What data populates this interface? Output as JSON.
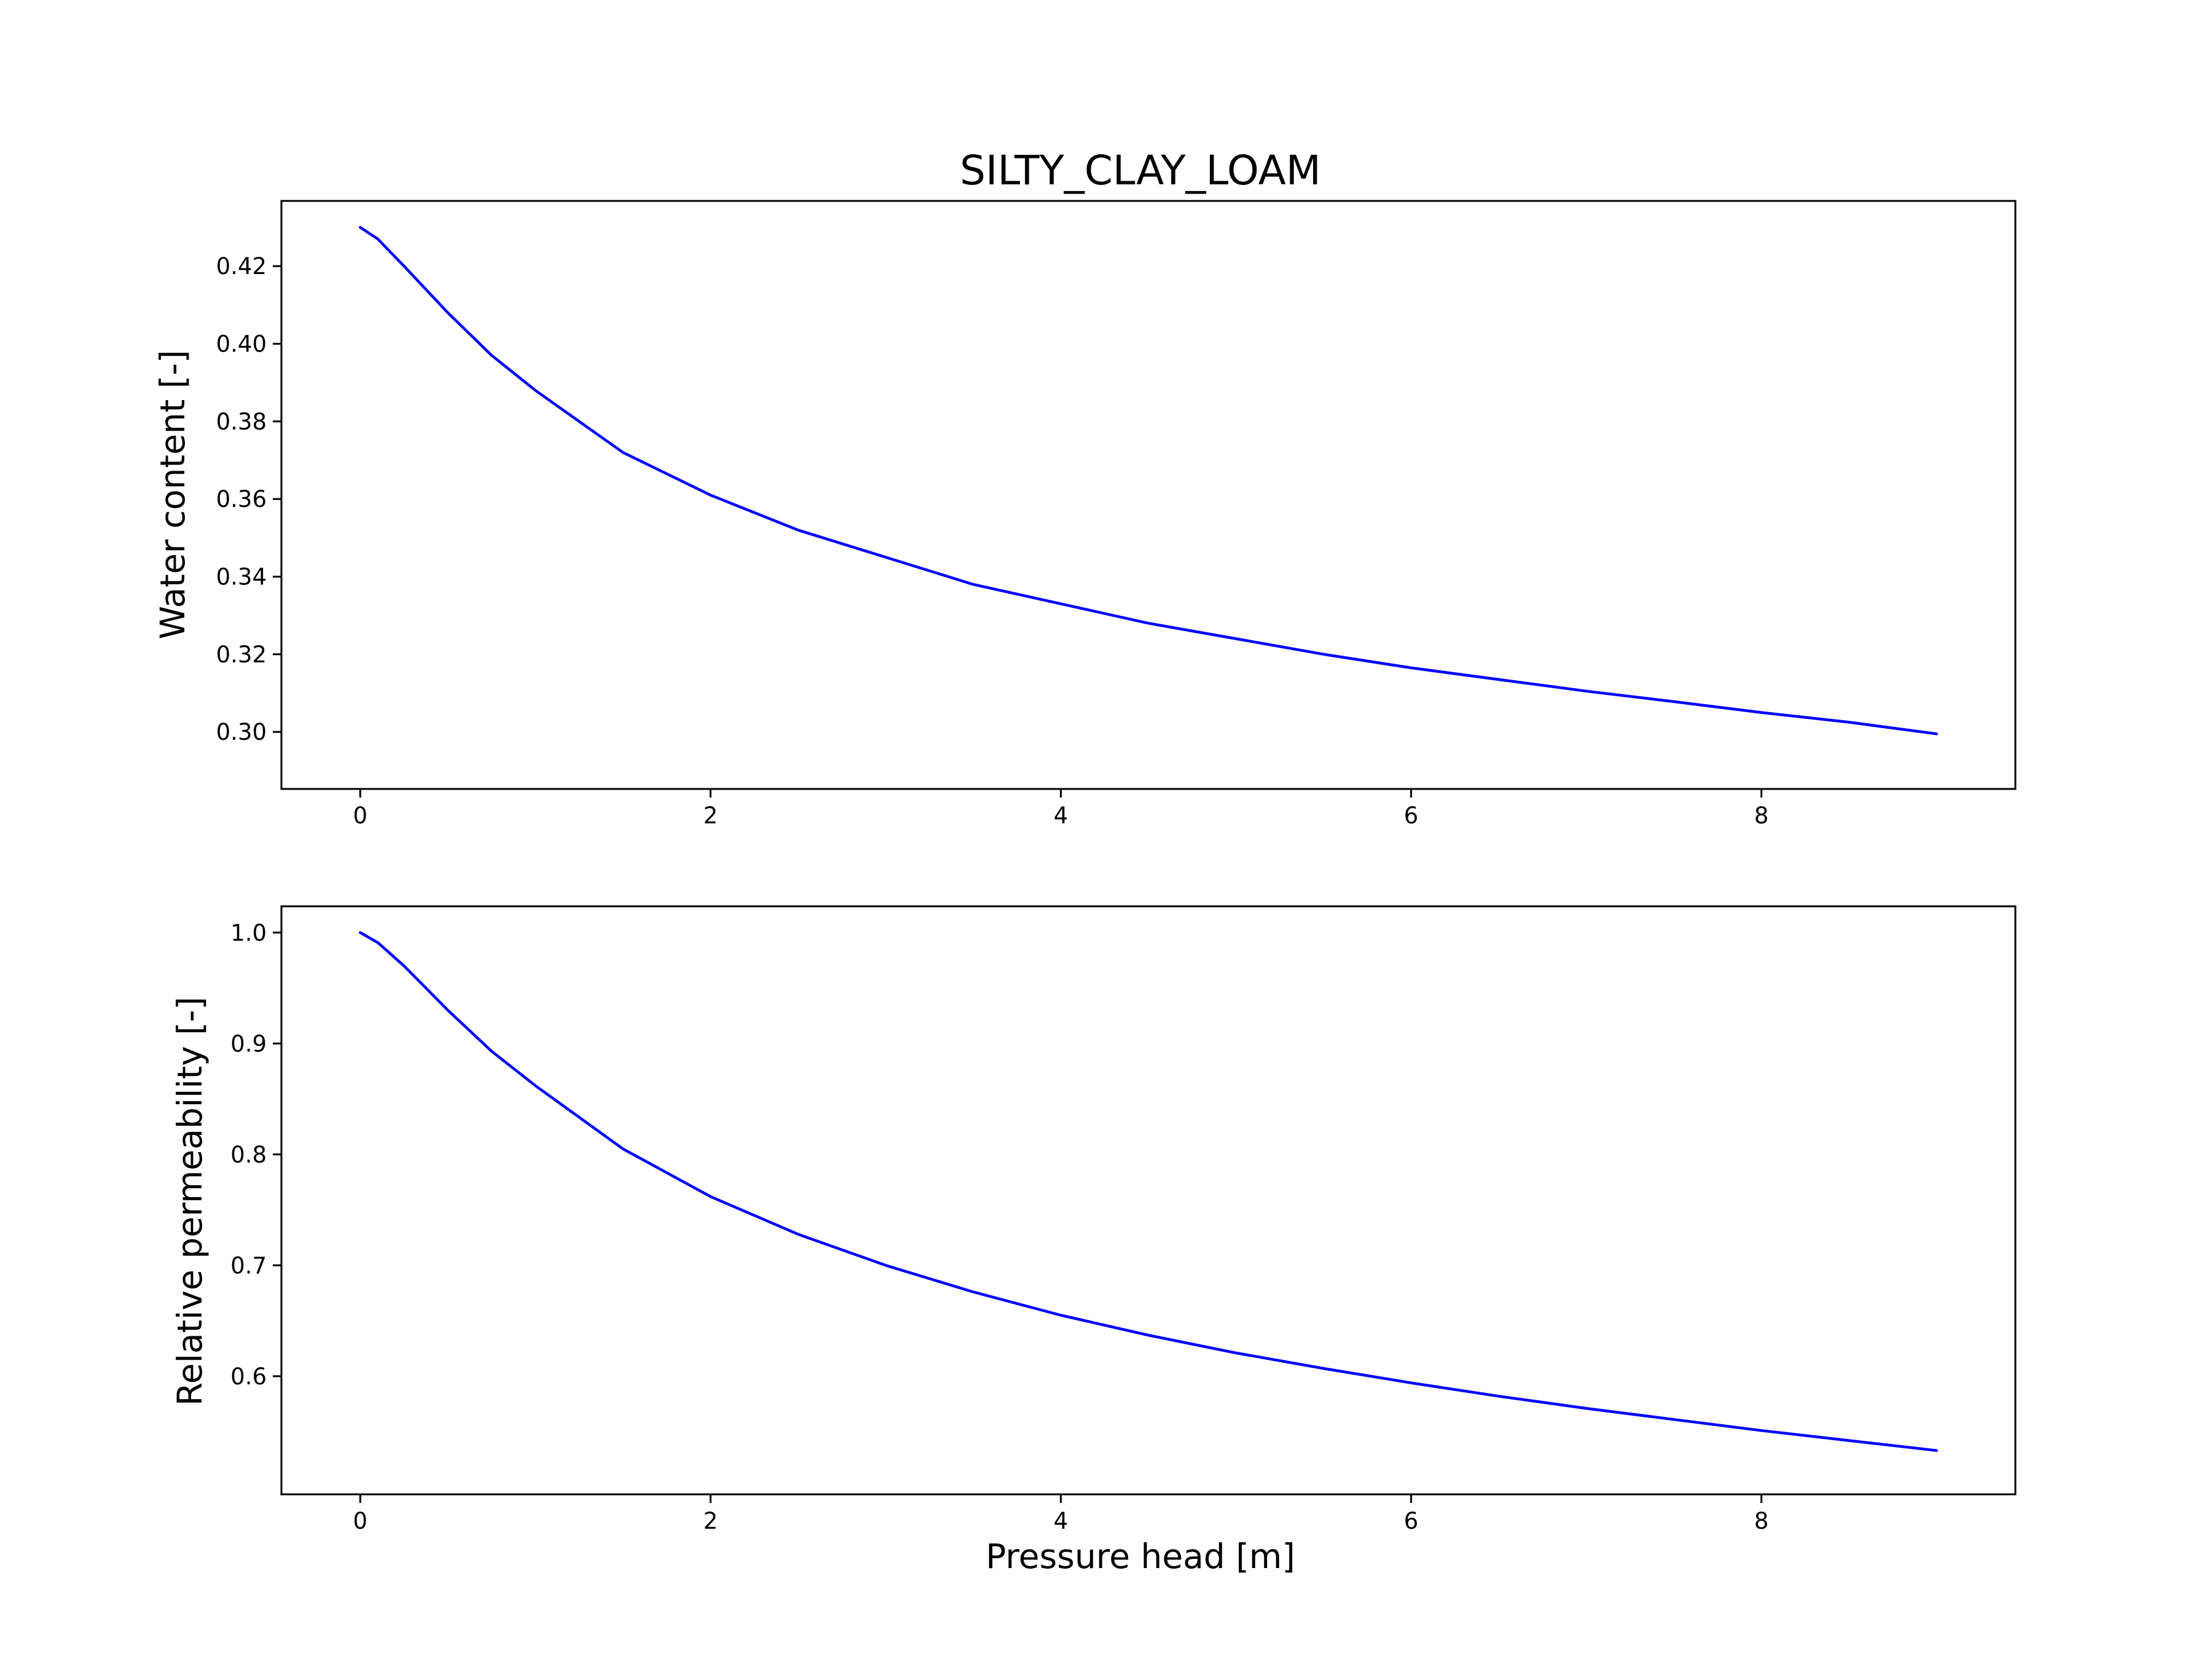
{
  "title": "SILTY_CLAY_LOAM",
  "line_color": "#0000ff",
  "chart_data": [
    {
      "type": "line",
      "title": "SILTY_CLAY_LOAM",
      "xlabel": "",
      "ylabel": "Water content [-]",
      "xlim": [
        -0.45,
        9.45
      ],
      "ylim": [
        0.2853,
        0.4368
      ],
      "xticks": [
        0,
        2,
        4,
        6,
        8
      ],
      "xtick_labels": [
        "0",
        "2",
        "4",
        "6",
        "8"
      ],
      "yticks": [
        0.3,
        0.32,
        0.34,
        0.36,
        0.38,
        0.4,
        0.42
      ],
      "ytick_labels": [
        "0.30",
        "0.32",
        "0.34",
        "0.36",
        "0.38",
        "0.40",
        "0.42"
      ],
      "grid": false,
      "series": [
        {
          "x": [
            0,
            0.1,
            0.25,
            0.5,
            0.75,
            1,
            1.5,
            2,
            2.5,
            3,
            3.5,
            4,
            4.5,
            5,
            5.5,
            6,
            6.5,
            7,
            7.5,
            8,
            8.5,
            9
          ],
          "y": [
            0.43,
            0.427,
            0.42,
            0.408,
            0.397,
            0.388,
            0.372,
            0.361,
            0.352,
            0.345,
            0.338,
            0.333,
            0.328,
            0.324,
            0.32,
            0.3165,
            0.3135,
            0.3105,
            0.3078,
            0.305,
            0.3025,
            0.2995
          ]
        }
      ]
    },
    {
      "type": "line",
      "xlabel": "Pressure head [m]",
      "ylabel": "Relative permeability [-]",
      "xlim": [
        -0.45,
        9.45
      ],
      "ylim": [
        0.4935,
        1.0237
      ],
      "xticks": [
        0,
        2,
        4,
        6,
        8
      ],
      "xtick_labels": [
        "0",
        "2",
        "4",
        "6",
        "8"
      ],
      "yticks": [
        0.6,
        0.7,
        0.8,
        0.9,
        1.0
      ],
      "ytick_labels": [
        "0.6",
        "0.7",
        "0.8",
        "0.9",
        "1.0"
      ],
      "grid": false,
      "series": [
        {
          "x": [
            0,
            0.1,
            0.25,
            0.5,
            0.75,
            1,
            1.5,
            2,
            2.5,
            3,
            3.5,
            4,
            4.5,
            5,
            5.5,
            6,
            6.5,
            7,
            7.5,
            8,
            8.5,
            9
          ],
          "y": [
            1.0,
            0.991,
            0.97,
            0.93,
            0.893,
            0.862,
            0.805,
            0.762,
            0.728,
            0.7,
            0.676,
            0.655,
            0.637,
            0.621,
            0.607,
            0.594,
            0.582,
            0.571,
            0.561,
            0.551,
            0.542,
            0.533
          ]
        }
      ]
    }
  ]
}
